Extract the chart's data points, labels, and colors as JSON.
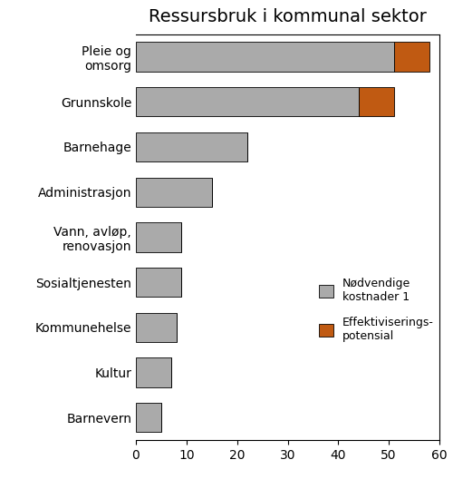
{
  "title": "Ressursbruk i kommunal sektor",
  "categories": [
    "Barnevern",
    "Kultur",
    "Kommunehelse",
    "Sosialtjenesten",
    "Vann, avløp,\nrenovasjon",
    "Administrasjon",
    "Barnehage",
    "Grunnskole",
    "Pleie og\nomsorg"
  ],
  "gray_values": [
    5,
    7,
    8,
    9,
    9,
    15,
    22,
    44,
    51
  ],
  "orange_values": [
    0,
    0,
    0,
    0,
    0,
    0,
    0,
    7,
    7
  ],
  "gray_color": "#aaaaaa",
  "orange_color": "#c05a12",
  "xlim": [
    0,
    60
  ],
  "xticks": [
    0,
    10,
    20,
    30,
    40,
    50,
    60
  ],
  "legend_gray": "Nødvendige\nkostnader 1",
  "legend_orange": "Effektiviserings-\npotensial",
  "background_color": "#ffffff",
  "title_fontsize": 14,
  "tick_fontsize": 10,
  "legend_fontsize": 9
}
